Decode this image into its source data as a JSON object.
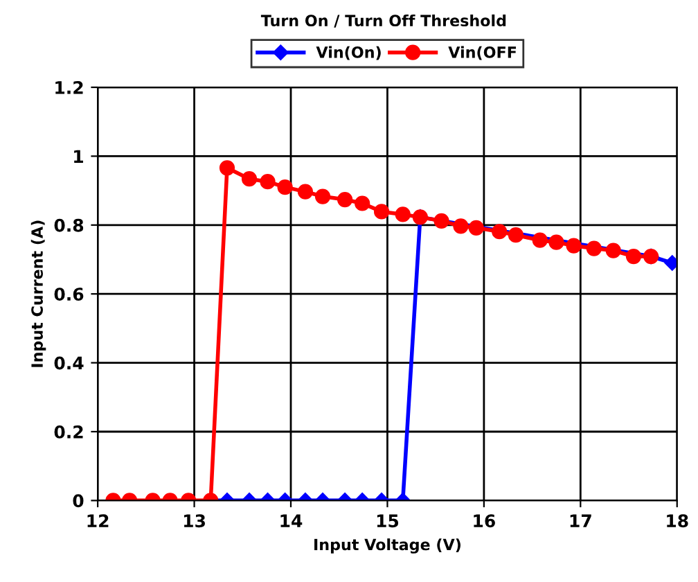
{
  "chart_data": {
    "type": "line",
    "title": "Turn On / Turn Off Threshold",
    "xlabel": "Input Voltage (V)",
    "ylabel": "Input Current (A)",
    "xlim": [
      12,
      18
    ],
    "xticks": [
      12,
      13,
      14,
      15,
      16,
      17,
      18
    ],
    "ylim": [
      0,
      1.2
    ],
    "yticks": [
      0,
      0.2,
      0.4,
      0.6,
      0.8,
      1,
      1.2
    ],
    "grid": true,
    "legend": "top",
    "series": [
      {
        "name": "Vin(On)",
        "color": "#0000ff",
        "marker": "diamond",
        "x": [
          13.17,
          13.34,
          13.57,
          13.76,
          13.94,
          14.15,
          14.33,
          14.56,
          14.74,
          14.94,
          15.16,
          15.34,
          17.73,
          17.95
        ],
        "values": [
          0,
          0,
          0,
          0,
          0,
          0,
          0,
          0,
          0,
          0,
          0,
          0.823,
          0.709,
          0.69
        ]
      },
      {
        "name": "Vin(OFF",
        "color": "#ff0000",
        "marker": "circle",
        "x": [
          12.16,
          12.33,
          12.57,
          12.75,
          12.94,
          13.17,
          13.34,
          13.57,
          13.76,
          13.94,
          14.15,
          14.33,
          14.56,
          14.74,
          14.94,
          15.16,
          15.34,
          15.56,
          15.76,
          15.92,
          16.16,
          16.33,
          16.58,
          16.75,
          16.93,
          17.14,
          17.34,
          17.55,
          17.73
        ],
        "values": [
          0,
          0,
          0,
          0,
          0,
          0,
          0.966,
          0.934,
          0.926,
          0.91,
          0.897,
          0.883,
          0.874,
          0.863,
          0.839,
          0.831,
          0.823,
          0.812,
          0.797,
          0.792,
          0.781,
          0.771,
          0.756,
          0.75,
          0.74,
          0.732,
          0.726,
          0.709,
          0.709
        ]
      }
    ]
  }
}
